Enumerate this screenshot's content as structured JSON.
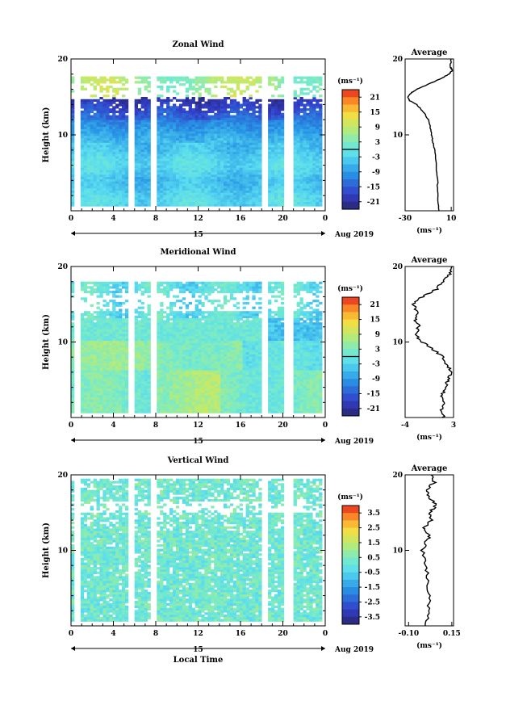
{
  "chart_data": [
    {
      "type": "heatmap",
      "title": "Zonal Wind",
      "ylabel": "Height (km)",
      "xlim": [
        0,
        24
      ],
      "ylim": [
        0,
        20
      ],
      "x_ticks": [
        "0",
        "4",
        "8",
        "12",
        "16",
        "20",
        "0"
      ],
      "y_ticks": [
        "10",
        "20"
      ],
      "date_day": "15",
      "date_label": "Aug 2019",
      "colorbar": {
        "unit": "(ms⁻¹)",
        "min": -24,
        "max": 24,
        "ticks": [
          "21",
          "15",
          "9",
          "3",
          "-3",
          "-9",
          "-15",
          "-21"
        ]
      },
      "average": {
        "title": "Average",
        "unit": "(ms⁻¹)",
        "xlim": [
          -30,
          12
        ],
        "x_ticks": [
          "-30",
          "10"
        ],
        "y_ticks": [
          "10",
          "20"
        ],
        "profile": [
          [
            0,
            -1
          ],
          [
            2,
            -1.5
          ],
          [
            4,
            -2
          ],
          [
            6,
            -3
          ],
          [
            8,
            -4
          ],
          [
            9,
            -6
          ],
          [
            10,
            -7
          ],
          [
            11,
            -8
          ],
          [
            12,
            -10
          ],
          [
            13,
            -14
          ],
          [
            14,
            -20
          ],
          [
            14.5,
            -26
          ],
          [
            15,
            -28
          ],
          [
            15.5,
            -25
          ],
          [
            16,
            -20
          ],
          [
            17,
            -5
          ],
          [
            17.5,
            2
          ],
          [
            18,
            8
          ],
          [
            18.5,
            11
          ],
          [
            19,
            9
          ],
          [
            20,
            10
          ]
        ]
      }
    },
    {
      "type": "heatmap",
      "title": "Meridional Wind",
      "ylabel": "Height (km)",
      "xlim": [
        0,
        24
      ],
      "ylim": [
        0,
        20
      ],
      "x_ticks": [
        "0",
        "4",
        "8",
        "12",
        "16",
        "20",
        "0"
      ],
      "y_ticks": [
        "10",
        "20"
      ],
      "date_day": "15",
      "date_label": "Aug 2019",
      "colorbar": {
        "unit": "(ms⁻¹)",
        "min": -24,
        "max": 24,
        "ticks": [
          "21",
          "15",
          "9",
          "3",
          "-3",
          "-9",
          "-15",
          "-21"
        ]
      },
      "average": {
        "title": "Average",
        "unit": "(ms⁻¹)",
        "xlim": [
          -4,
          3
        ],
        "x_ticks": [
          "-4",
          "3"
        ],
        "y_ticks": [
          "10",
          "20"
        ],
        "profile": [
          [
            0,
            1.5
          ],
          [
            1,
            1.2
          ],
          [
            2,
            1.6
          ],
          [
            3,
            1.3
          ],
          [
            4,
            1.8
          ],
          [
            5,
            2.2
          ],
          [
            6,
            2.6
          ],
          [
            7,
            2.0
          ],
          [
            8,
            1.5
          ],
          [
            9,
            0
          ],
          [
            10,
            -1.5
          ],
          [
            11,
            -2.5
          ],
          [
            12,
            -2.0
          ],
          [
            13,
            -2.6
          ],
          [
            14,
            -2.2
          ],
          [
            15,
            -2.8
          ],
          [
            16,
            -1.5
          ],
          [
            17,
            0.5
          ],
          [
            18,
            1.5
          ],
          [
            19,
            2.5
          ],
          [
            20,
            2.8
          ]
        ]
      }
    },
    {
      "type": "heatmap",
      "title": "Vertical Wind",
      "ylabel": "Height (km)",
      "xlabel": "Local Time",
      "xlim": [
        0,
        24
      ],
      "ylim": [
        0,
        20
      ],
      "x_ticks": [
        "0",
        "4",
        "8",
        "12",
        "16",
        "20",
        "0"
      ],
      "y_ticks": [
        "10",
        "20"
      ],
      "date_day": "15",
      "date_label": "Aug 2019",
      "colorbar": {
        "unit": "(ms⁻¹)",
        "min": -4,
        "max": 4,
        "ticks": [
          "3.5",
          "2.5",
          "1.5",
          "0.5",
          "-0.5",
          "-1.5",
          "-2.5",
          "-3.5"
        ]
      },
      "average": {
        "title": "Average",
        "unit": "(ms⁻¹)",
        "xlim": [
          -0.12,
          0.16
        ],
        "x_ticks": [
          "-0.10",
          "0.15"
        ],
        "y_ticks": [
          "10",
          "20"
        ],
        "profile": [
          [
            0,
            0.0
          ],
          [
            2,
            0.01
          ],
          [
            4,
            0.02
          ],
          [
            6,
            0.01
          ],
          [
            8,
            0.0
          ],
          [
            10,
            -0.02
          ],
          [
            11,
            0.0
          ],
          [
            12,
            0.02
          ],
          [
            13,
            -0.01
          ],
          [
            14,
            0.03
          ],
          [
            15,
            0.02
          ],
          [
            16,
            0.06
          ],
          [
            17,
            0.02
          ],
          [
            18,
            0.0
          ],
          [
            19,
            0.05
          ],
          [
            20,
            0.03
          ]
        ]
      }
    }
  ]
}
